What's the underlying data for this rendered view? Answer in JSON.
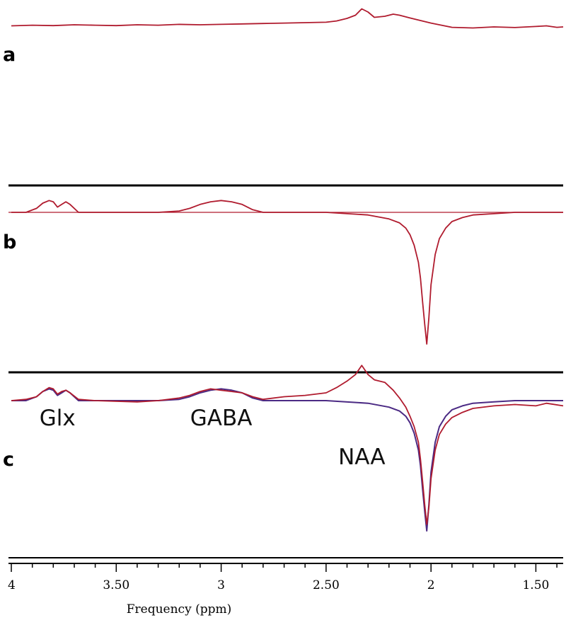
{
  "chart_data": {
    "type": "line",
    "xlabel": "Frequency (ppm)",
    "x_reversed": true,
    "xlim": [
      4.0,
      1.37
    ],
    "xticks": [
      {
        "value": 4.0,
        "label": "4"
      },
      {
        "value": 3.5,
        "label": "3.50"
      },
      {
        "value": 3.0,
        "label": "3"
      },
      {
        "value": 2.5,
        "label": "2.50"
      },
      {
        "value": 2.0,
        "label": "2"
      },
      {
        "value": 1.5,
        "label": "1.50"
      }
    ],
    "line_colors": {
      "data": "#b01b2e",
      "fit": "#4b2a84"
    },
    "panels": [
      {
        "letter": "a",
        "series": [
          {
            "role": "data",
            "x": [
              4.0,
              3.9,
              3.8,
              3.7,
              3.6,
              3.5,
              3.4,
              3.3,
              3.2,
              3.1,
              3.0,
              2.9,
              2.8,
              2.7,
              2.6,
              2.5,
              2.45,
              2.4,
              2.36,
              2.33,
              2.3,
              2.27,
              2.22,
              2.18,
              2.15,
              2.1,
              2.05,
              2.0,
              1.95,
              1.9,
              1.8,
              1.7,
              1.6,
              1.5,
              1.45,
              1.4,
              1.37
            ],
            "y": [
              0.05,
              0.08,
              0.06,
              0.1,
              0.08,
              0.06,
              0.1,
              0.08,
              0.12,
              0.1,
              0.12,
              0.14,
              0.16,
              0.18,
              0.2,
              0.22,
              0.28,
              0.4,
              0.55,
              0.85,
              0.7,
              0.45,
              0.5,
              0.6,
              0.55,
              0.42,
              0.3,
              0.18,
              0.08,
              -0.02,
              -0.05,
              0.0,
              -0.03,
              0.02,
              0.05,
              -0.02,
              0.0
            ]
          }
        ]
      },
      {
        "letter": "b",
        "series": [
          {
            "role": "data",
            "x": [
              4.0,
              3.93,
              3.88,
              3.85,
              3.82,
              3.8,
              3.78,
              3.76,
              3.74,
              3.72,
              3.68,
              3.6,
              3.3,
              3.2,
              3.15,
              3.1,
              3.05,
              3.0,
              2.95,
              2.9,
              2.85,
              2.8,
              2.5,
              2.3,
              2.2,
              2.15,
              2.12,
              2.1,
              2.08,
              2.06,
              2.05,
              2.04,
              2.03,
              2.02,
              2.01,
              2.0,
              1.98,
              1.96,
              1.93,
              1.9,
              1.85,
              1.8,
              1.7,
              1.6,
              1.5,
              1.37
            ],
            "y": [
              0.0,
              0.0,
              0.03,
              0.07,
              0.09,
              0.08,
              0.04,
              0.06,
              0.08,
              0.06,
              0.0,
              0.0,
              0.0,
              0.01,
              0.03,
              0.06,
              0.08,
              0.09,
              0.08,
              0.06,
              0.02,
              0.0,
              0.0,
              -0.02,
              -0.05,
              -0.08,
              -0.12,
              -0.17,
              -0.25,
              -0.38,
              -0.5,
              -0.68,
              -0.85,
              -1.0,
              -0.8,
              -0.55,
              -0.32,
              -0.2,
              -0.12,
              -0.07,
              -0.04,
              -0.02,
              -0.01,
              0.0,
              0.0,
              0.0
            ]
          }
        ]
      },
      {
        "letter": "c",
        "series": [
          {
            "role": "fit",
            "x": [
              4.0,
              3.93,
              3.88,
              3.85,
              3.82,
              3.8,
              3.78,
              3.76,
              3.74,
              3.72,
              3.68,
              3.6,
              3.3,
              3.2,
              3.15,
              3.1,
              3.05,
              3.0,
              2.95,
              2.9,
              2.85,
              2.8,
              2.5,
              2.3,
              2.2,
              2.15,
              2.12,
              2.1,
              2.08,
              2.06,
              2.05,
              2.04,
              2.03,
              2.02,
              2.01,
              2.0,
              1.98,
              1.96,
              1.93,
              1.9,
              1.85,
              1.8,
              1.7,
              1.6,
              1.5,
              1.37
            ],
            "y": [
              0.0,
              0.0,
              0.03,
              0.07,
              0.09,
              0.08,
              0.04,
              0.06,
              0.08,
              0.06,
              0.0,
              0.0,
              0.0,
              0.01,
              0.03,
              0.06,
              0.08,
              0.09,
              0.08,
              0.06,
              0.02,
              0.0,
              0.0,
              -0.02,
              -0.05,
              -0.08,
              -0.12,
              -0.17,
              -0.25,
              -0.38,
              -0.5,
              -0.68,
              -0.85,
              -1.0,
              -0.8,
              -0.55,
              -0.32,
              -0.2,
              -0.12,
              -0.07,
              -0.04,
              -0.02,
              -0.01,
              0.0,
              0.0,
              0.0
            ]
          },
          {
            "role": "data",
            "x": [
              4.0,
              3.93,
              3.88,
              3.85,
              3.82,
              3.8,
              3.78,
              3.76,
              3.74,
              3.72,
              3.68,
              3.6,
              3.4,
              3.3,
              3.2,
              3.15,
              3.1,
              3.05,
              3.0,
              2.95,
              2.9,
              2.85,
              2.8,
              2.7,
              2.6,
              2.5,
              2.45,
              2.4,
              2.36,
              2.33,
              2.3,
              2.27,
              2.22,
              2.18,
              2.15,
              2.12,
              2.1,
              2.08,
              2.06,
              2.05,
              2.04,
              2.03,
              2.02,
              2.01,
              2.0,
              1.98,
              1.96,
              1.93,
              1.9,
              1.85,
              1.8,
              1.7,
              1.6,
              1.5,
              1.45,
              1.37
            ],
            "y": [
              0.0,
              0.01,
              0.03,
              0.07,
              0.1,
              0.09,
              0.05,
              0.07,
              0.08,
              0.06,
              0.01,
              0.0,
              -0.01,
              0.0,
              0.02,
              0.04,
              0.07,
              0.09,
              0.08,
              0.07,
              0.06,
              0.03,
              0.01,
              0.03,
              0.04,
              0.06,
              0.1,
              0.15,
              0.2,
              0.27,
              0.2,
              0.16,
              0.14,
              0.08,
              0.02,
              -0.05,
              -0.12,
              -0.2,
              -0.32,
              -0.45,
              -0.62,
              -0.8,
              -0.95,
              -0.82,
              -0.6,
              -0.38,
              -0.26,
              -0.18,
              -0.13,
              -0.09,
              -0.06,
              -0.04,
              -0.03,
              -0.04,
              -0.02,
              -0.04
            ]
          }
        ],
        "annotations": [
          {
            "text": "Glx",
            "x": 3.78,
            "y": -0.19
          },
          {
            "text": "GABA",
            "x": 3.0,
            "y": -0.19
          },
          {
            "text": "NAA",
            "x": 2.33,
            "y": -0.49
          }
        ]
      }
    ]
  }
}
